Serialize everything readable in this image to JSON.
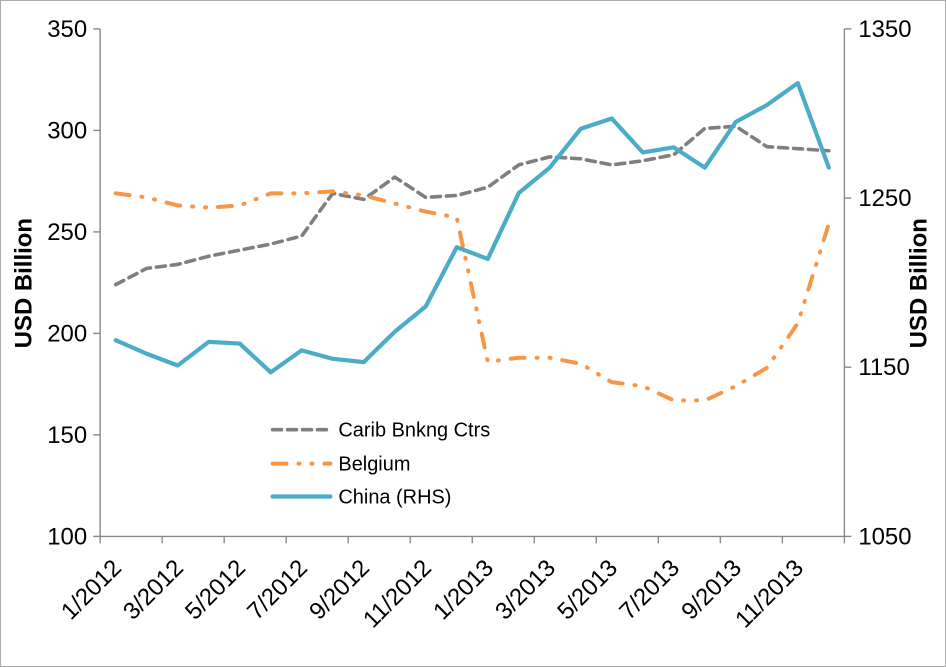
{
  "frame": {
    "background": "#ffffff",
    "border_color": "#ababab",
    "axis_color": "#898989"
  },
  "chart_data": {
    "type": "line",
    "title": "",
    "grid": false,
    "left_axis": {
      "label": "USD Billion",
      "min": 100,
      "max": 350,
      "step": 50,
      "ticks": [
        100,
        150,
        200,
        250,
        300,
        350
      ]
    },
    "right_axis": {
      "label": "USD Billion",
      "min": 1050,
      "max": 1350,
      "step": 100,
      "ticks": [
        1050,
        1150,
        1250,
        1350
      ]
    },
    "x_axis": {
      "tick_labels": [
        "1/2012",
        "3/2012",
        "5/2012",
        "7/2012",
        "9/2012",
        "11/2012",
        "1/2013",
        "3/2013",
        "5/2013",
        "7/2013",
        "9/2013",
        "11/2013"
      ],
      "categories": [
        "1/2012",
        "2/2012",
        "3/2012",
        "4/2012",
        "5/2012",
        "6/2012",
        "7/2012",
        "8/2012",
        "9/2012",
        "10/2012",
        "11/2012",
        "12/2012",
        "1/2013",
        "2/2013",
        "3/2013",
        "4/2013",
        "5/2013",
        "6/2013",
        "7/2013",
        "8/2013",
        "9/2013",
        "10/2013",
        "11/2013",
        "12/2013"
      ]
    },
    "series": [
      {
        "name": "Carib Bnkng Ctrs",
        "axis": "left",
        "color": "#7f7f7f",
        "line_style": "dashed",
        "values": [
          224,
          232,
          234,
          238,
          241,
          244,
          248,
          269,
          266,
          277,
          267,
          268,
          272,
          283,
          287,
          286,
          283,
          285,
          288,
          301,
          302,
          292,
          291,
          290
        ]
      },
      {
        "name": "Belgium",
        "axis": "left",
        "color": "#f79646",
        "line_style": "dash-dot-dot",
        "values": [
          269,
          267,
          263,
          262,
          263,
          269,
          269,
          270,
          268,
          264,
          260,
          257,
          186,
          188,
          188,
          185,
          176,
          174,
          167,
          167,
          174,
          183,
          205,
          254
        ]
      },
      {
        "name": "China (RHS)",
        "axis": "right",
        "color": "#4bacc6",
        "line_style": "solid",
        "values": [
          1166,
          1158,
          1151,
          1165,
          1164,
          1147,
          1160,
          1155,
          1153,
          1171,
          1186,
          1221,
          1214,
          1253,
          1268,
          1291,
          1297,
          1277,
          1280,
          1268,
          1295,
          1305,
          1318,
          1268
        ]
      }
    ],
    "legend": {
      "position": "inside-lower-left",
      "entries": [
        "Carib Bnkng Ctrs",
        "Belgium",
        "China (RHS)"
      ]
    }
  }
}
